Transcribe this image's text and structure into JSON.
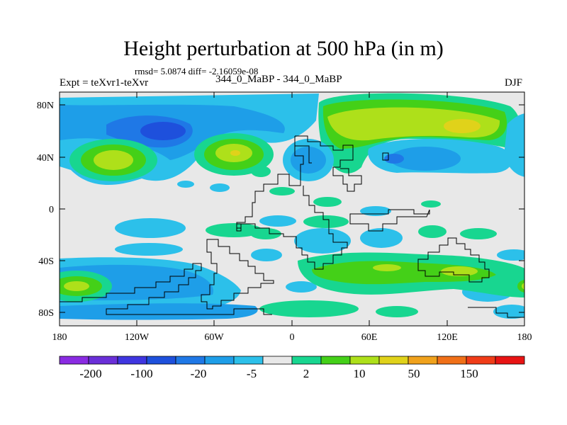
{
  "title": "Height perturbation at 500 hPa (in m)",
  "stats": "rmsd= 5.0874 diff= -2.16059e-08",
  "experiment": "Expt = teXvr1-teXvr",
  "period": "344_0_MaBP - 344_0_MaBP",
  "season": "DJF",
  "lat_ticks": [
    "80N",
    "40N",
    "0",
    "40S",
    "80S"
  ],
  "lon_ticks": [
    "180",
    "120W",
    "60W",
    "0",
    "60E",
    "120E",
    "180"
  ],
  "colorbar": {
    "labels": [
      "-200",
      "-100",
      "-20",
      "-5",
      "2",
      "10",
      "50",
      "150"
    ],
    "colors": [
      "#8a2be2",
      "#6a2fd8",
      "#3f35e0",
      "#1e50dc",
      "#1f78e6",
      "#1e9ee8",
      "#2cc0ea",
      "#e8e8e8",
      "#18d690",
      "#44d018",
      "#aee01a",
      "#e0d21a",
      "#f0a21c",
      "#f07018",
      "#f03c18",
      "#e81414"
    ]
  },
  "colors": {
    "background": "#e8e8e8",
    "light_blue": "#2cc0ea",
    "mid_blue": "#1e9ee8",
    "blue": "#1f78e6",
    "dark_blue": "#1e50dc",
    "teal_green": "#18d690",
    "green": "#44d018",
    "yellow_green": "#aee01a",
    "yellow": "#e0d21a",
    "orange": "#f0a21c"
  }
}
